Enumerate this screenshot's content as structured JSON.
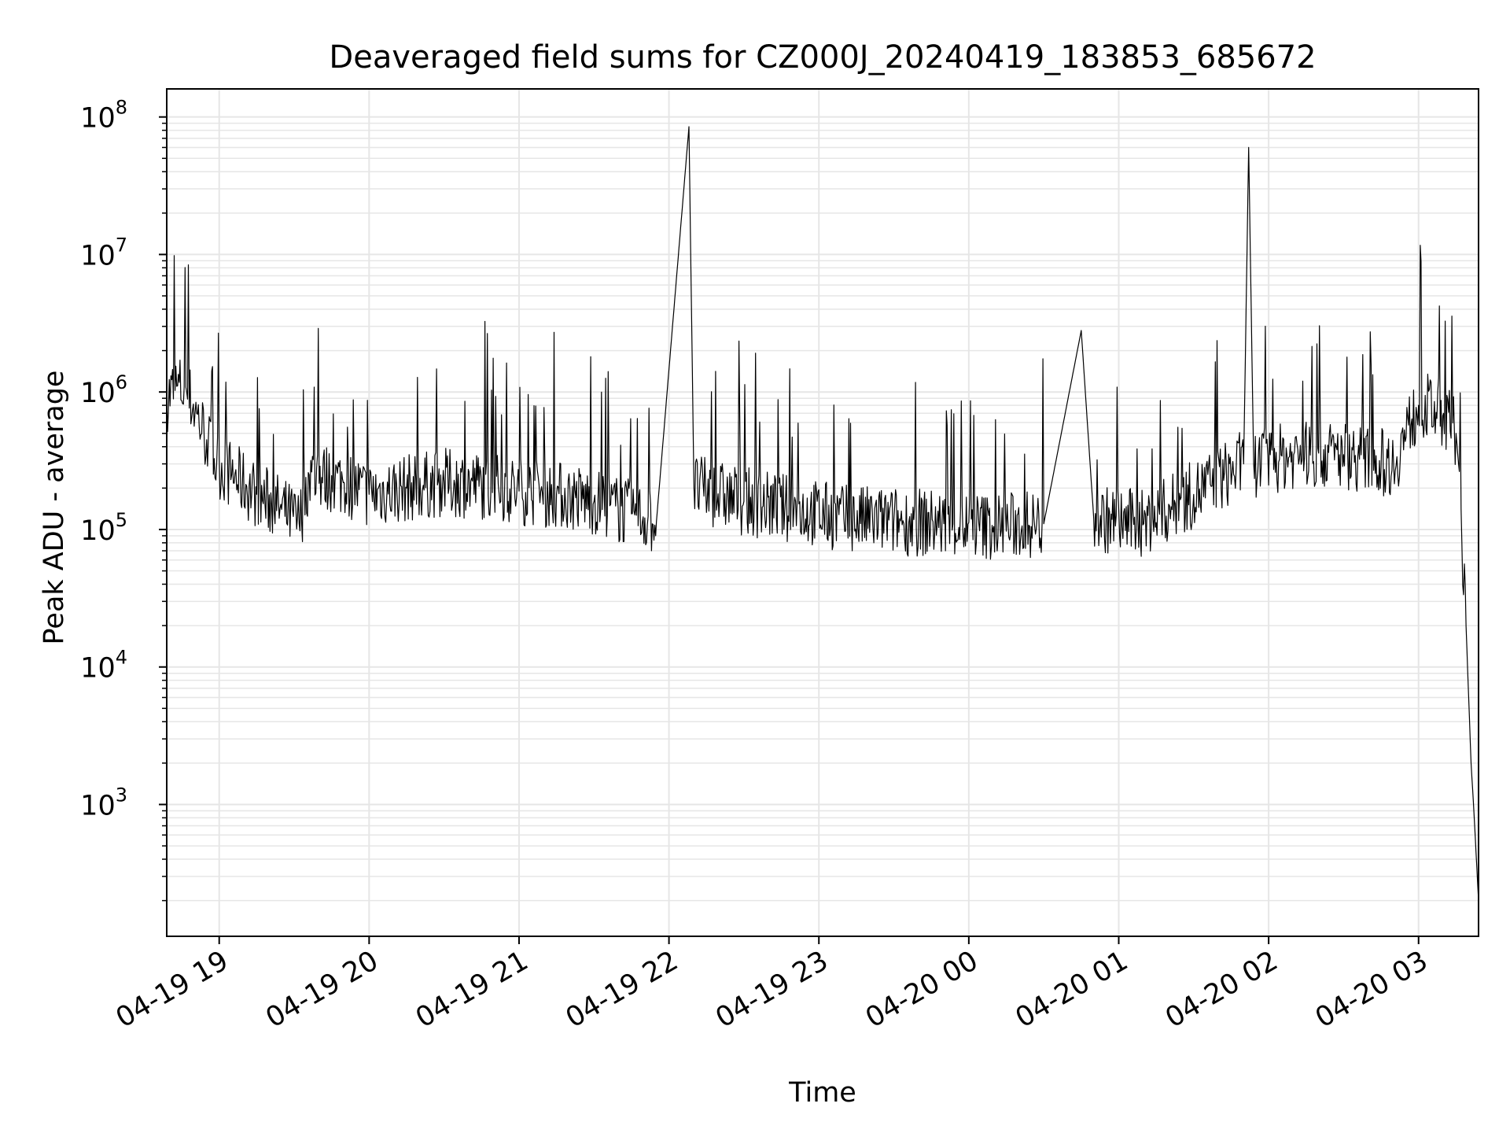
{
  "chart_data": {
    "type": "line",
    "title": "Deaveraged field sums for CZ000J_20240419_183853_685672",
    "xlabel": "Time",
    "ylabel": "Peak ADU - average",
    "yscale": "log",
    "ylim": [
      110,
      160000000
    ],
    "xlim": [
      "04-19 18:39",
      "04-20 03:24"
    ],
    "x_ticks": [
      "04-19 19",
      "04-19 20",
      "04-19 21",
      "04-19 22",
      "04-19 23",
      "04-20 00",
      "04-20 01",
      "04-20 02",
      "04-20 03"
    ],
    "y_ticks": [
      {
        "base": "10",
        "exp": "3"
      },
      {
        "base": "10",
        "exp": "4"
      },
      {
        "base": "10",
        "exp": "5"
      },
      {
        "base": "10",
        "exp": "6"
      },
      {
        "base": "10",
        "exp": "7"
      },
      {
        "base": "10",
        "exp": "8"
      }
    ],
    "grid": true,
    "line_color": "#000000",
    "grid_color": "#e6e6e6",
    "series": [
      {
        "points": [
          [
            "04-19 18:39",
            900000
          ],
          [
            "04-19 18:43",
            1100000
          ],
          [
            "04-19 18:47",
            1000000
          ],
          [
            "04-19 18:51",
            700000
          ],
          [
            "04-19 18:55",
            450000
          ],
          [
            "04-19 18:59",
            300000
          ],
          [
            "04-19 19:05",
            250000
          ],
          [
            "04-19 19:15",
            180000
          ],
          [
            "04-19 19:25",
            140000
          ],
          [
            "04-19 19:32",
            110000
          ],
          [
            "04-19 19:36",
            250000
          ],
          [
            "04-19 19:50",
            220000
          ],
          [
            "04-19 20:00",
            180000
          ],
          [
            "04-19 20:15",
            200000
          ],
          [
            "04-19 20:30",
            220000
          ],
          [
            "04-19 20:45",
            210000
          ],
          [
            "04-19 21:00",
            190000
          ],
          [
            "04-19 21:15",
            180000
          ],
          [
            "04-19 21:30",
            160000
          ],
          [
            "04-19 21:45",
            130000
          ],
          [
            "04-19 21:55",
            115000
          ],
          [
            "04-19 22:08",
            85000000
          ],
          [
            "04-19 22:10",
            200000
          ],
          [
            "04-19 22:30",
            160000
          ],
          [
            "04-19 22:50",
            140000
          ],
          [
            "04-19 23:10",
            120000
          ],
          [
            "04-19 23:30",
            115000
          ],
          [
            "04-19 23:50",
            110000
          ],
          [
            "04-20 00:10",
            105000
          ],
          [
            "04-20 00:30",
            110000
          ],
          [
            "04-20 00:45",
            2800000
          ],
          [
            "04-20 00:50",
            120000
          ],
          [
            "04-20 01:10",
            110000
          ],
          [
            "04-20 01:30",
            180000
          ],
          [
            "04-20 01:50",
            300000
          ],
          [
            "04-20 01:52",
            60000000
          ],
          [
            "04-20 01:54",
            300000
          ],
          [
            "04-20 02:10",
            350000
          ],
          [
            "04-20 02:30",
            350000
          ],
          [
            "04-20 02:50",
            300000
          ],
          [
            "04-20 03:00",
            800000
          ],
          [
            "04-20 03:10",
            700000
          ],
          [
            "04-20 03:15",
            500000
          ],
          [
            "04-20 03:16",
            300000
          ],
          [
            "04-20 03:19",
            20000
          ],
          [
            "04-20 03:21",
            2000
          ],
          [
            "04-20 03:22",
            1000
          ],
          [
            "04-20 03:24",
            200
          ]
        ]
      }
    ]
  }
}
